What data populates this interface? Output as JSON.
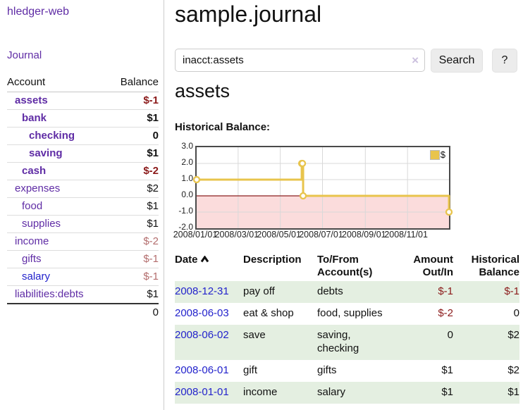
{
  "theme": {
    "link_purple": "#5f2ca5",
    "link_blue": "#2323cc",
    "negative_strong": "#8b1a1a",
    "negative_soft": "#b36d6d",
    "row_stripe_green": "#e4efe1",
    "header_text": "#111111"
  },
  "sidebar": {
    "brand": "hledger-web",
    "journal_label": "Journal",
    "accounts_table": {
      "headers": {
        "account": "Account",
        "balance": "Balance"
      },
      "rows": [
        {
          "name": "assets",
          "depth": 1,
          "bold": true,
          "balance": "$-1",
          "tone": "negative-strong"
        },
        {
          "name": "bank",
          "depth": 2,
          "bold": true,
          "balance": "$1",
          "tone": "normal"
        },
        {
          "name": "checking",
          "depth": 3,
          "bold": true,
          "balance": "0",
          "tone": "normal"
        },
        {
          "name": "saving",
          "depth": 3,
          "bold": true,
          "balance": "$1",
          "tone": "normal"
        },
        {
          "name": "cash",
          "depth": 2,
          "bold": true,
          "balance": "$-2",
          "tone": "negative-strong"
        },
        {
          "name": "expenses",
          "depth": 1,
          "bold": false,
          "balance": "$2",
          "tone": "normal"
        },
        {
          "name": "food",
          "depth": 2,
          "bold": false,
          "balance": "$1",
          "tone": "normal"
        },
        {
          "name": "supplies",
          "depth": 2,
          "bold": false,
          "balance": "$1",
          "tone": "normal"
        },
        {
          "name": "income",
          "depth": 1,
          "bold": false,
          "balance": "$-2",
          "tone": "negative-soft"
        },
        {
          "name": "gifts",
          "depth": 2,
          "bold": false,
          "balance": "$-1",
          "tone": "negative-soft"
        },
        {
          "name": "salary",
          "depth": 2,
          "bold": false,
          "balance": "$-1",
          "tone": "negative-soft",
          "link_style": "unvisited-blue"
        },
        {
          "name": "liabilities:debts",
          "depth": 1,
          "bold": false,
          "balance": "$1",
          "tone": "normal"
        }
      ],
      "total": "0"
    }
  },
  "main": {
    "title": "sample.journal",
    "search": {
      "value": "inacct:assets",
      "clear_glyph": "×",
      "button_label": "Search",
      "help_label": "?"
    },
    "account_heading": "assets",
    "register_table": {
      "headers": [
        {
          "lines": [
            "Date"
          ],
          "sortable": true,
          "sort_indicator": "ascending"
        },
        {
          "lines": [
            "Description"
          ]
        },
        {
          "lines": [
            "To/From",
            "Account(s)"
          ]
        },
        {
          "lines": [
            "Amount",
            "Out/In"
          ],
          "align": "right"
        },
        {
          "lines": [
            "Historical",
            "Balance"
          ],
          "align": "right"
        }
      ],
      "rows": [
        {
          "date": "2008-12-31",
          "description": "pay off",
          "accounts": "debts",
          "amount": "$-1",
          "amount_tone": "negative",
          "balance": "$-1",
          "balance_tone": "negative"
        },
        {
          "date": "2008-06-03",
          "description": "eat & shop",
          "accounts": "food, supplies",
          "amount": "$-2",
          "amount_tone": "negative",
          "balance": "0",
          "balance_tone": "normal"
        },
        {
          "date": "2008-06-02",
          "description": "save",
          "accounts": "saving, checking",
          "amount": "0",
          "amount_tone": "normal",
          "balance": "$2",
          "balance_tone": "normal"
        },
        {
          "date": "2008-06-01",
          "description": "gift",
          "accounts": "gifts",
          "amount": "$1",
          "amount_tone": "normal",
          "balance": "$2",
          "balance_tone": "normal"
        },
        {
          "date": "2008-01-01",
          "description": "income",
          "accounts": "salary",
          "amount": "$1",
          "amount_tone": "normal",
          "balance": "$1",
          "balance_tone": "normal"
        }
      ]
    }
  },
  "chart_data": {
    "type": "line",
    "step": true,
    "title": "Historical Balance:",
    "series": [
      {
        "name": "$",
        "points": [
          {
            "date": "2008-01-01",
            "value": 1
          },
          {
            "date": "2008-06-01",
            "value": 2
          },
          {
            "date": "2008-06-02",
            "value": 2
          },
          {
            "date": "2008-06-03",
            "value": 0
          },
          {
            "date": "2008-12-31",
            "value": -1
          }
        ]
      }
    ],
    "x_start": "2008-01-01",
    "x_end": "2008-12-31",
    "ylim": [
      -2.0,
      3.0
    ],
    "yticks": [
      "3.0",
      "2.0",
      "1.0",
      "0.0",
      "-1.0",
      "-2.0"
    ],
    "xticks": [
      {
        "label": "2008/01/01",
        "date": "2008-01-01"
      },
      {
        "label": "2008/03/01",
        "date": "2008-03-01"
      },
      {
        "label": "2008/05/01",
        "date": "2008-05-01"
      },
      {
        "label": "2008/07/01",
        "date": "2008-07-01"
      },
      {
        "label": "2008/09/01",
        "date": "2008-09-01"
      },
      {
        "label": "2008/11/01",
        "date": "2008-11-01"
      }
    ],
    "legend": {
      "label": "$",
      "position": "top-right"
    },
    "grid": true,
    "colors": {
      "line": "#e8c44c",
      "marker_fill": "#ffffff",
      "negative_fill": "#fbdcdc",
      "zero_line": "#8b2020",
      "grid": "#d9d9d9",
      "border": "#4a4a4a"
    }
  }
}
